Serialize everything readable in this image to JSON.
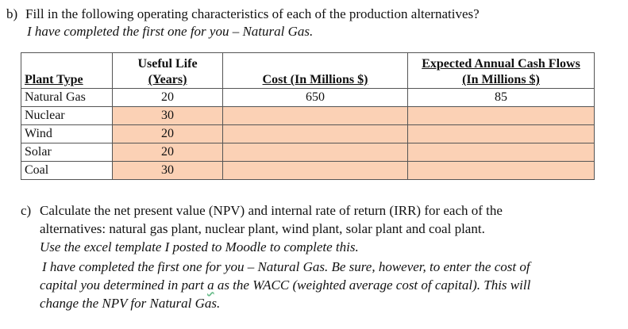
{
  "part_b": {
    "marker": "b)",
    "question": "Fill in the following operating characteristics of each of the production alternatives?",
    "note": "I have completed the first one for you – Natural Gas."
  },
  "table": {
    "headers": {
      "plant_type": "Plant Type",
      "useful_life_1": "Useful Life",
      "useful_life_2": "(Years)",
      "cost": "Cost (In Millions $)",
      "cash_flows_1": "Expected Annual Cash Flows",
      "cash_flows_2": "(In Millions $)"
    },
    "rows": [
      {
        "plant": "Natural Gas",
        "life": "20",
        "cost": "650",
        "cash": "85"
      },
      {
        "plant": "Nuclear",
        "life": "30",
        "cost": "",
        "cash": ""
      },
      {
        "plant": "Wind",
        "life": "20",
        "cost": "",
        "cash": ""
      },
      {
        "plant": "Solar",
        "life": "20",
        "cost": "",
        "cash": ""
      },
      {
        "plant": "Coal",
        "life": "30",
        "cost": "",
        "cash": ""
      }
    ],
    "highlight_color": "#fbd1b5"
  },
  "part_c": {
    "marker": "c)",
    "line1": "Calculate the net present value (NPV) and internal rate of return (IRR) for each of the",
    "line2": "alternatives: natural gas plant, nuclear plant, wind plant, solar plant and coal plant.",
    "line3": "Use the excel template I posted to Moodle to complete this.",
    "line4": "I have completed the first one for you – Natural Gas. Be sure, however, to enter the cost of",
    "line5_a": "capital you determined in part ",
    "line5_b": "a",
    "line5_c": " as the WACC (weighted average cost of capital). This will",
    "line6": "change the NPV for Natural Gas."
  }
}
